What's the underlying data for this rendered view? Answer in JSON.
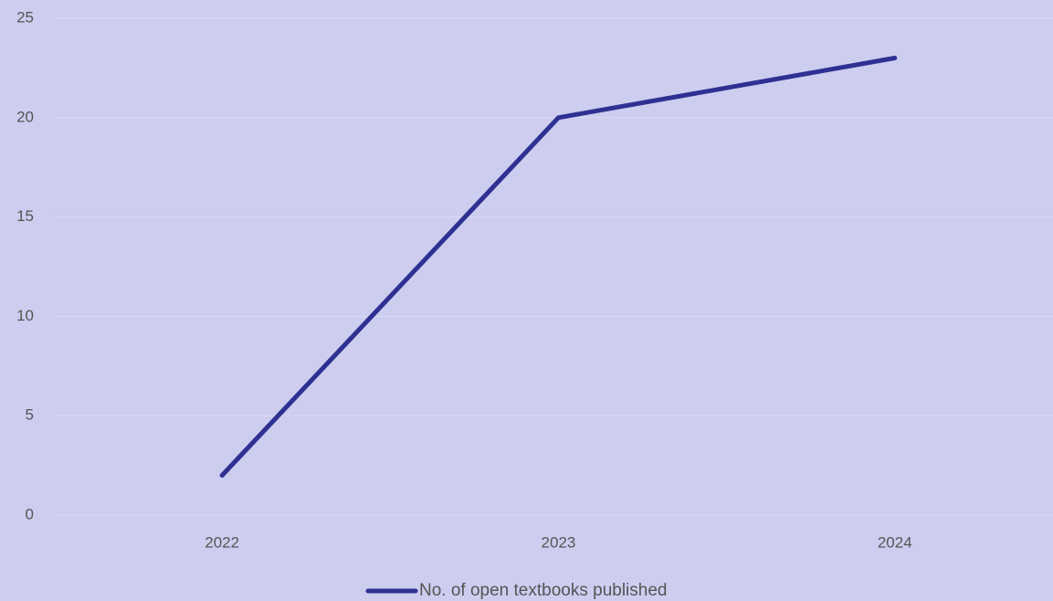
{
  "chart_data": {
    "type": "line",
    "categories": [
      "2022",
      "2023",
      "2024"
    ],
    "series": [
      {
        "name": "No. of open textbooks published",
        "color": "#2e3192",
        "values": [
          2,
          20,
          23
        ]
      }
    ],
    "ylim": [
      0,
      25
    ],
    "yticks": [
      0,
      5,
      10,
      15,
      20,
      25
    ],
    "grid": true,
    "legend": "bottom"
  }
}
